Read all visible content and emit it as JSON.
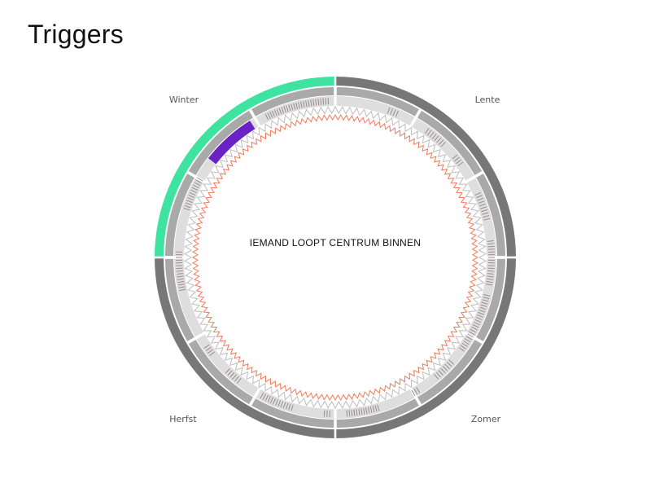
{
  "title": "Triggers",
  "center_label": "IEMAND LOOPT CENTRUM BINNEN",
  "seasons": [
    {
      "label": "Lente",
      "color": "#777777"
    },
    {
      "label": "Zomer",
      "color": "#777777"
    },
    {
      "label": "Herfst",
      "color": "#777777"
    },
    {
      "label": "Winter",
      "color": "#3ee39f"
    }
  ],
  "highlight_month": {
    "color": "#6b22c4"
  },
  "colors": {
    "season_ring": "#777777",
    "month_ring": "#a9a9a9",
    "tick": "#9a8a8f",
    "zigzag": "#bdbdbd",
    "inner_zigzag": "#f07a5a"
  }
}
